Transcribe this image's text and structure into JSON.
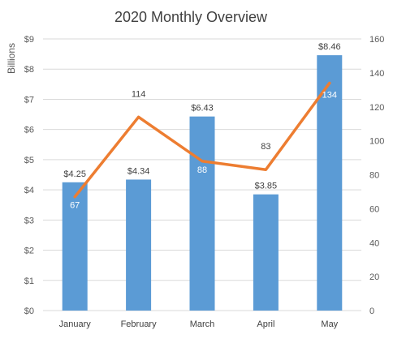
{
  "chart_data": {
    "type": "bar",
    "title": "2020 Monthly Overview",
    "categories": [
      "January",
      "February",
      "March",
      "April",
      "May"
    ],
    "series": [
      {
        "type": "bar",
        "axis": "left",
        "values": [
          4.25,
          4.34,
          6.43,
          3.85,
          8.46
        ],
        "labels": [
          "$4.25",
          "$4.34",
          "$6.43",
          "$3.85",
          "$8.46"
        ],
        "color": "#5B9BD5"
      },
      {
        "type": "line",
        "axis": "right",
        "values": [
          67,
          114,
          88,
          83,
          134
        ],
        "labels": [
          "67",
          "114",
          "88",
          "83",
          "134"
        ],
        "color": "#ED7D31"
      }
    ],
    "y_left": {
      "label": "Billions",
      "ylim": [
        0,
        9
      ],
      "ticks": [
        "$0",
        "$1",
        "$2",
        "$3",
        "$4",
        "$5",
        "$6",
        "$7",
        "$8",
        "$9"
      ]
    },
    "y_right": {
      "ylim": [
        0,
        160
      ],
      "ticks": [
        "0",
        "20",
        "40",
        "60",
        "80",
        "100",
        "120",
        "140",
        "160"
      ]
    },
    "grid": true,
    "legend": "none",
    "colors": {
      "gridline": "#D9D9D9",
      "text": "#595959"
    }
  }
}
